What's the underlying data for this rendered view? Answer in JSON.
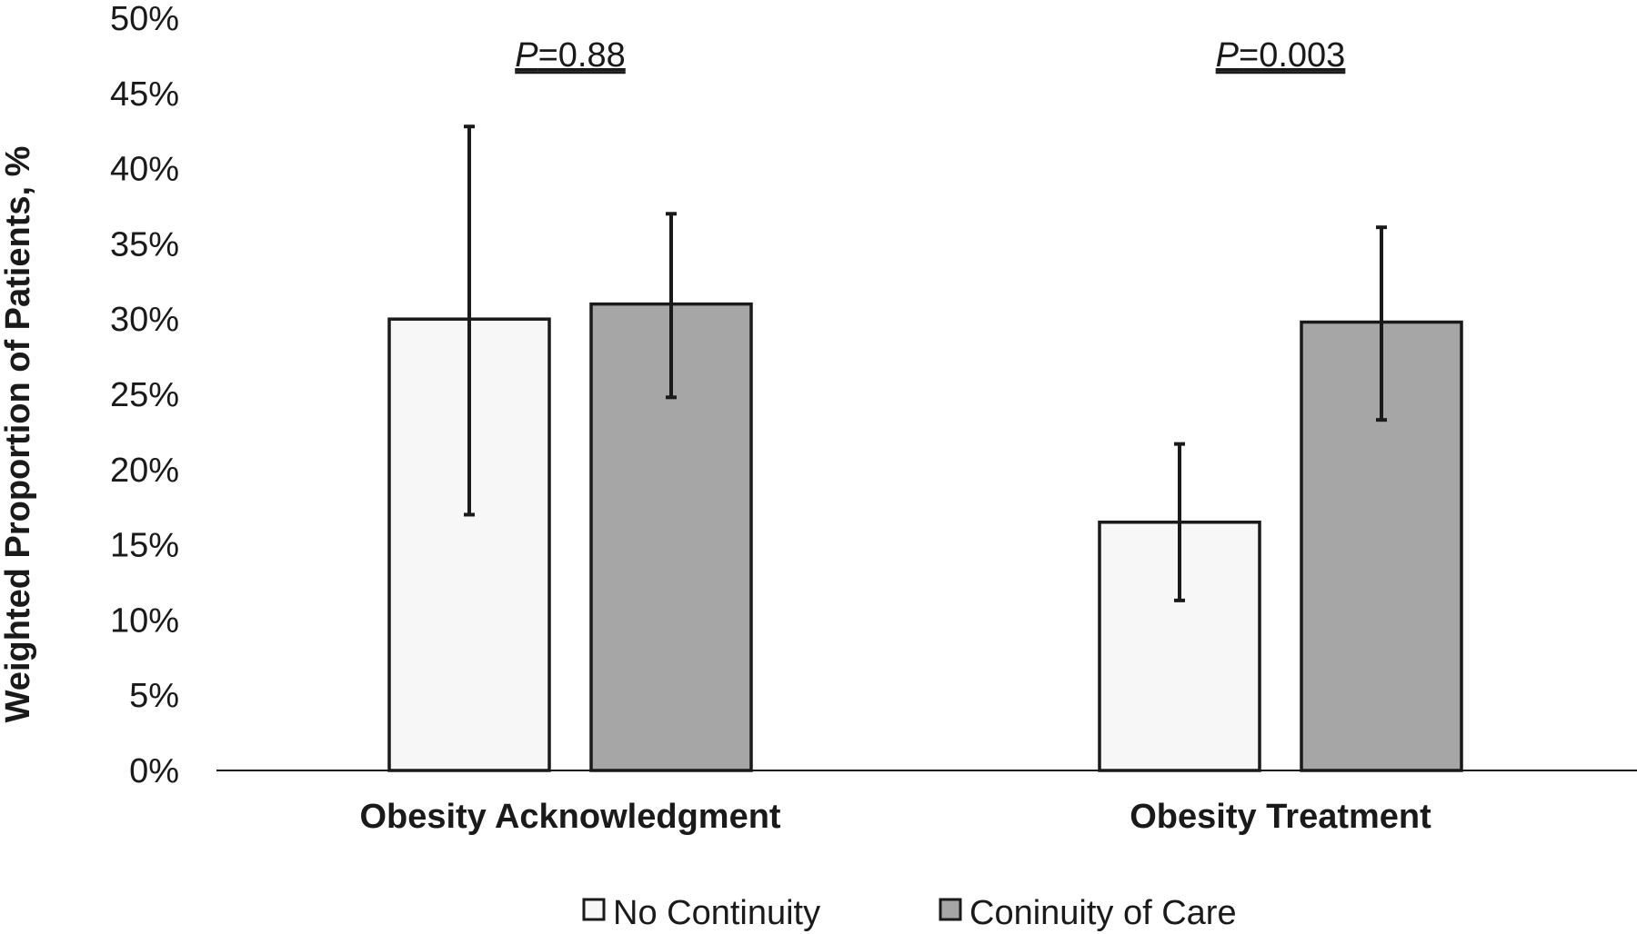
{
  "chart_data": {
    "type": "bar",
    "ylabel": "Weighted Proportion of Patients, %",
    "xlabel": "",
    "ylim": [
      0,
      50
    ],
    "yticks": [
      0,
      5,
      10,
      15,
      20,
      25,
      30,
      35,
      40,
      45,
      50
    ],
    "ytick_labels": [
      "0%",
      "5%",
      "10%",
      "15%",
      "20%",
      "25%",
      "30%",
      "35%",
      "40%",
      "45%",
      "50%"
    ],
    "grid": false,
    "legend_position": "bottom",
    "categories": [
      "Obesity Acknowledgment",
      "Obesity Treatment"
    ],
    "series": [
      {
        "name": "No Continuity",
        "color": "#f7f7f7",
        "values": [
          30.0,
          16.5
        ],
        "error_low": [
          17.0,
          11.3
        ],
        "error_high": [
          42.8,
          21.7
        ]
      },
      {
        "name": "Coninuity of Care",
        "color": "#a6a6a6",
        "values": [
          31.0,
          29.8
        ],
        "error_low": [
          24.8,
          23.3
        ],
        "error_high": [
          37.0,
          36.1
        ]
      }
    ],
    "annotations": [
      {
        "category": "Obesity Acknowledgment",
        "p_italic": "P",
        "p_value": "=0.88"
      },
      {
        "category": "Obesity Treatment",
        "p_italic": "P",
        "p_value": "=0.003"
      }
    ]
  }
}
